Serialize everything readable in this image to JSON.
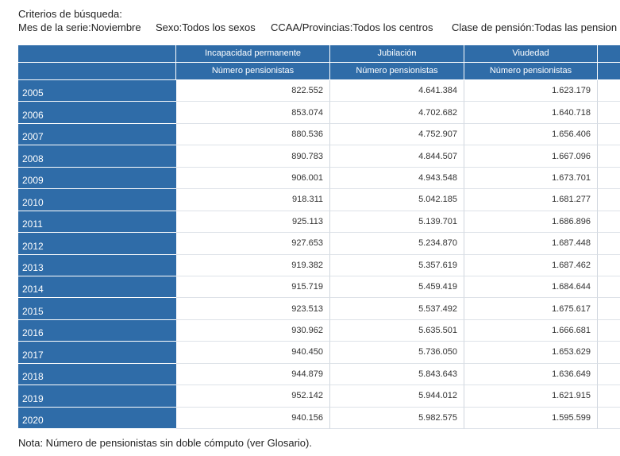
{
  "criteria": {
    "title": "Criterios de búsqueda:",
    "items": [
      "Mes de la serie:Noviembre",
      "Sexo:Todos los sexos",
      "CCAA/Provincias:Todos los centros",
      "Clase de pensión:Todas las pension"
    ]
  },
  "table": {
    "groups": [
      "Incapacidad permanente",
      "Jubilación",
      "Viudedad"
    ],
    "measures": [
      "Número pensionistas",
      "Número pensionistas",
      "Número pensionistas"
    ],
    "rows": [
      [
        "2005",
        "822.552",
        "4.641.384",
        "1.623.179"
      ],
      [
        "2006",
        "853.074",
        "4.702.682",
        "1.640.718"
      ],
      [
        "2007",
        "880.536",
        "4.752.907",
        "1.656.406"
      ],
      [
        "2008",
        "890.783",
        "4.844.507",
        "1.667.096"
      ],
      [
        "2009",
        "906.001",
        "4.943.548",
        "1.673.701"
      ],
      [
        "2010",
        "918.311",
        "5.042.185",
        "1.681.277"
      ],
      [
        "2011",
        "925.113",
        "5.139.701",
        "1.686.896"
      ],
      [
        "2012",
        "927.653",
        "5.234.870",
        "1.687.448"
      ],
      [
        "2013",
        "919.382",
        "5.357.619",
        "1.687.462"
      ],
      [
        "2014",
        "915.719",
        "5.459.419",
        "1.684.644"
      ],
      [
        "2015",
        "923.513",
        "5.537.492",
        "1.675.617"
      ],
      [
        "2016",
        "930.962",
        "5.635.501",
        "1.666.681"
      ],
      [
        "2017",
        "940.450",
        "5.736.050",
        "1.653.629"
      ],
      [
        "2018",
        "944.879",
        "5.843.643",
        "1.636.649"
      ],
      [
        "2019",
        "952.142",
        "5.944.012",
        "1.621.915"
      ],
      [
        "2020",
        "940.156",
        "5.982.575",
        "1.595.599"
      ]
    ]
  },
  "note": "Nota: Número de pensionistas sin doble cómputo (ver Glosario)."
}
